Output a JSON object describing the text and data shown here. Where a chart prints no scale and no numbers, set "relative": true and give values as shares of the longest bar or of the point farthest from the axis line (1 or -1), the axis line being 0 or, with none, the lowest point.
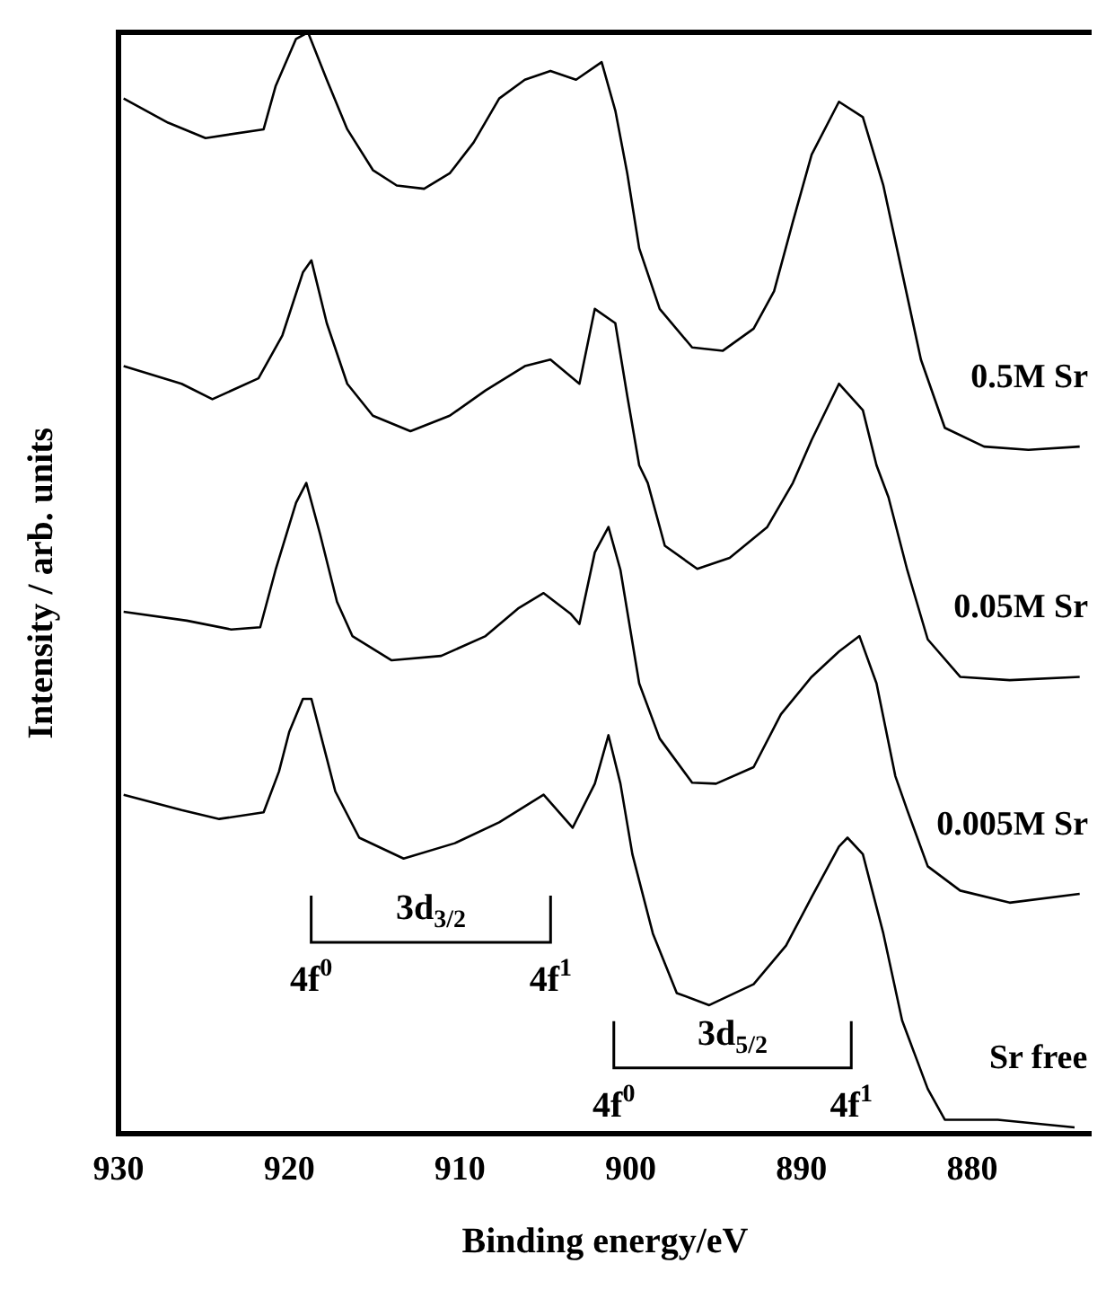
{
  "chart_data": {
    "type": "line",
    "xlabel": "Binding energy/eV",
    "ylabel": "Intensity / arb. units",
    "relative": true,
    "xlim": [
      930,
      873
    ],
    "xticks": [
      930,
      920,
      910,
      900,
      890,
      880
    ],
    "grid": false,
    "legend": false,
    "series": [
      {
        "name": "0.5M Sr",
        "color": "#000000",
        "x": [
          929.7,
          927.1,
          924.9,
          921.5,
          920.8,
          919.6,
          918.9,
          917.8,
          916.6,
          915.1,
          913.7,
          912.1,
          910.6,
          909.2,
          907.7,
          906.2,
          904.7,
          903.2,
          901.7,
          900.9,
          900.2,
          899.5,
          898.3,
          896.4,
          894.6,
          892.8,
          891.6,
          890.5,
          889.4,
          887.8,
          886.4,
          885.2,
          884.1,
          883.0,
          881.6,
          879.3,
          876.7,
          873.7
        ],
        "values": [
          0.94,
          0.918,
          0.904,
          0.912,
          0.951,
          0.994,
          1.0,
          0.957,
          0.912,
          0.875,
          0.861,
          0.858,
          0.872,
          0.9,
          0.94,
          0.957,
          0.965,
          0.957,
          0.973,
          0.929,
          0.872,
          0.804,
          0.749,
          0.714,
          0.711,
          0.731,
          0.765,
          0.828,
          0.889,
          0.937,
          0.923,
          0.861,
          0.782,
          0.703,
          0.641,
          0.624,
          0.621,
          0.624
        ]
      },
      {
        "name": "0.05M Sr",
        "color": "#000000",
        "x": [
          929.7,
          926.3,
          924.5,
          921.8,
          920.4,
          919.2,
          918.7,
          917.8,
          916.6,
          915.1,
          912.9,
          910.6,
          908.5,
          906.2,
          904.7,
          903.0,
          902.1,
          900.9,
          900.2,
          899.5,
          899.0,
          898.0,
          896.1,
          894.2,
          892.0,
          890.5,
          889.4,
          887.8,
          886.4,
          885.6,
          884.9,
          883.8,
          882.6,
          880.7,
          877.8,
          873.7
        ],
        "values": [
          0.697,
          0.681,
          0.667,
          0.686,
          0.725,
          0.782,
          0.793,
          0.736,
          0.681,
          0.652,
          0.638,
          0.652,
          0.675,
          0.697,
          0.703,
          0.681,
          0.749,
          0.736,
          0.67,
          0.607,
          0.591,
          0.534,
          0.513,
          0.523,
          0.551,
          0.591,
          0.63,
          0.681,
          0.657,
          0.607,
          0.578,
          0.512,
          0.449,
          0.415,
          0.412,
          0.415
        ]
      },
      {
        "name": "0.005M Sr",
        "color": "#000000",
        "x": [
          929.7,
          926.0,
          923.4,
          921.7,
          920.8,
          919.6,
          919.0,
          918.2,
          917.2,
          916.3,
          914.0,
          911.1,
          908.5,
          906.6,
          905.1,
          903.5,
          903.0,
          902.1,
          901.3,
          900.6,
          899.5,
          898.3,
          896.4,
          895.0,
          892.8,
          891.2,
          889.4,
          887.8,
          886.6,
          885.6,
          884.5,
          883.8,
          882.6,
          880.7,
          877.8,
          873.7
        ],
        "values": [
          0.474,
          0.466,
          0.458,
          0.46,
          0.512,
          0.573,
          0.591,
          0.545,
          0.483,
          0.452,
          0.43,
          0.434,
          0.452,
          0.477,
          0.491,
          0.472,
          0.463,
          0.528,
          0.551,
          0.512,
          0.409,
          0.359,
          0.319,
          0.318,
          0.333,
          0.381,
          0.415,
          0.438,
          0.452,
          0.409,
          0.325,
          0.294,
          0.243,
          0.221,
          0.21,
          0.218
        ]
      },
      {
        "name": "Sr free",
        "color": "#000000",
        "x": [
          929.7,
          926.3,
          924.1,
          921.5,
          920.6,
          920.0,
          919.2,
          918.7,
          917.8,
          917.3,
          915.9,
          913.3,
          910.3,
          907.7,
          905.1,
          903.4,
          902.1,
          901.3,
          900.6,
          899.9,
          898.7,
          897.3,
          895.4,
          892.8,
          890.9,
          889.4,
          887.8,
          887.3,
          886.4,
          885.2,
          884.1,
          882.6,
          881.6,
          878.5,
          874.0
        ],
        "values": [
          0.308,
          0.294,
          0.286,
          0.292,
          0.329,
          0.365,
          0.395,
          0.395,
          0.341,
          0.311,
          0.269,
          0.25,
          0.264,
          0.283,
          0.308,
          0.278,
          0.318,
          0.362,
          0.318,
          0.254,
          0.182,
          0.128,
          0.117,
          0.136,
          0.171,
          0.215,
          0.261,
          0.269,
          0.254,
          0.182,
          0.103,
          0.041,
          0.013,
          0.013,
          0.006
        ]
      }
    ],
    "annotations": [
      "3d$_{3/2}$",
      "4f$^{0}$",
      "4f$^{1}$",
      "3d$_{5/2}$",
      "4f$^{0}$",
      "4f$^{1}$"
    ]
  }
}
